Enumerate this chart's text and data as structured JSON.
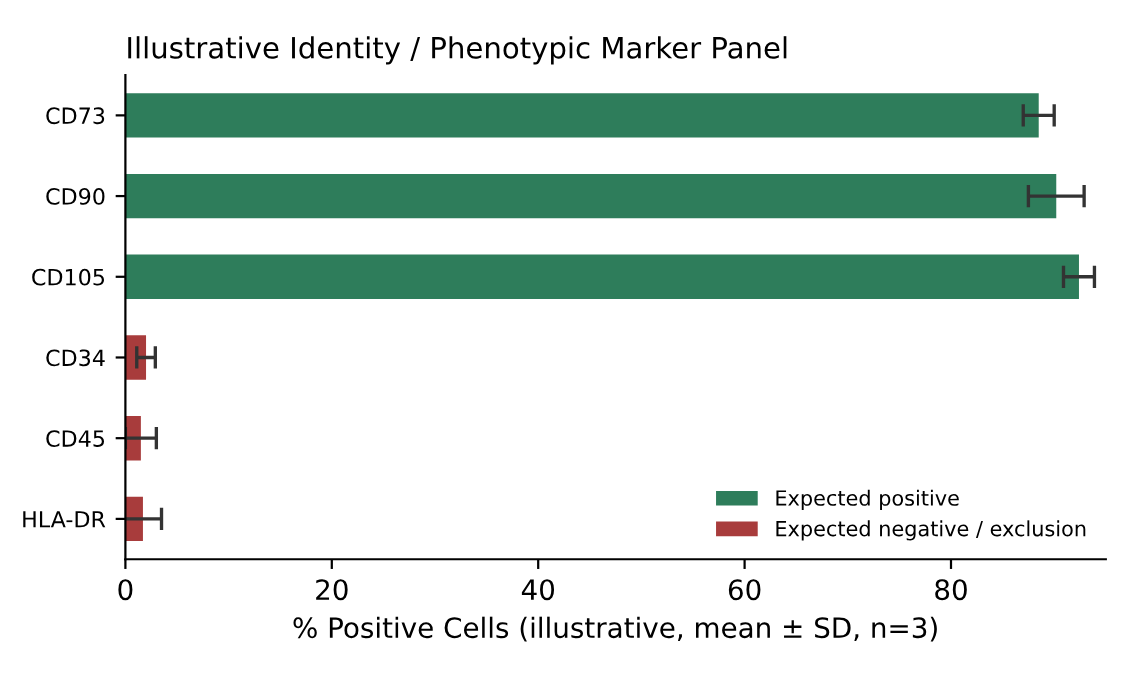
{
  "chart_data": {
    "type": "bar",
    "orientation": "horizontal",
    "title": "Illustrative Identity / Phenotypic Marker Panel",
    "xlabel": "% Positive Cells (illustrative, mean ± SD, n=3)",
    "categories": [
      "CD73",
      "CD90",
      "CD105",
      "CD34",
      "CD45",
      "HLA-DR"
    ],
    "series": [
      {
        "name": "Expected positive",
        "color": "#2e7d5b",
        "values": [
          88.5,
          90.2,
          92.4,
          null,
          null,
          null
        ],
        "errors": [
          1.5,
          2.7,
          1.5,
          null,
          null,
          null
        ]
      },
      {
        "name": "Expected negative / exclusion",
        "color": "#a83c3c",
        "values": [
          null,
          null,
          null,
          2.0,
          1.5,
          1.7
        ],
        "errors": [
          null,
          null,
          null,
          0.9,
          1.5,
          1.8
        ]
      }
    ],
    "xlim": [
      0,
      95
    ],
    "xticks": [
      0,
      20,
      40,
      60,
      80
    ],
    "grid": false,
    "legend": "bottom right"
  }
}
